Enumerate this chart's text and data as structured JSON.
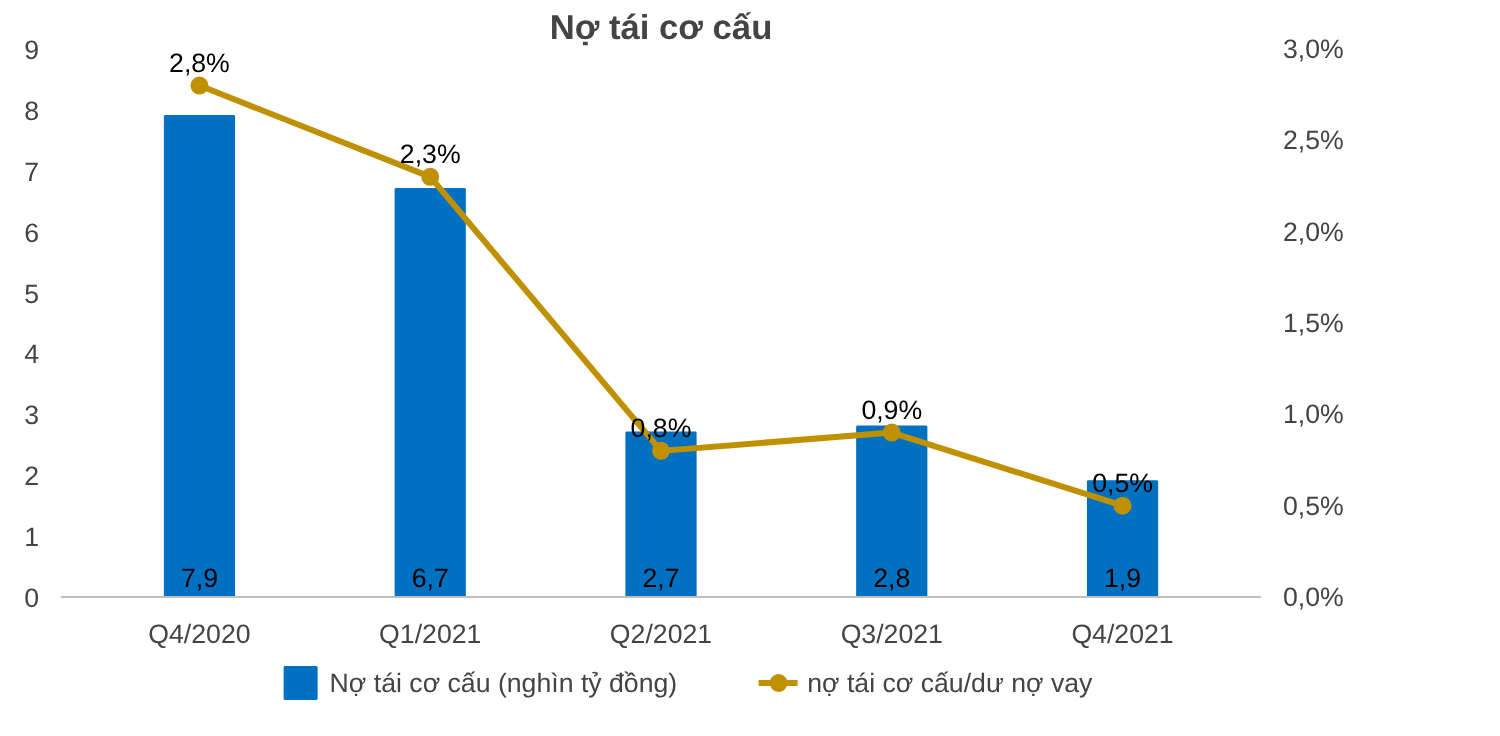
{
  "chart_data": {
    "type": "bar",
    "title": "Nợ tái cơ cấu",
    "categories": [
      "Q4/2020",
      "Q1/2021",
      "Q2/2021",
      "Q3/2021",
      "Q4/2021"
    ],
    "series": [
      {
        "name": "Nợ tái cơ cấu (nghìn tỷ đồng)",
        "color": "#0070c0",
        "values": [
          7.9,
          6.7,
          2.7,
          2.8,
          1.9
        ],
        "value_labels": [
          "7,9",
          "6,7",
          "2,7",
          "2,8",
          "1,9"
        ]
      },
      {
        "name": "nợ tái cơ cấu/dư nợ vay",
        "type": "line",
        "axis": "y2",
        "color": "#bf9000",
        "values": [
          2.8,
          2.3,
          0.8,
          0.9,
          0.5
        ],
        "value_labels": [
          "2,8%",
          "2,3%",
          "0,8%",
          "0,9%",
          "0,5%"
        ]
      }
    ],
    "ylim": [
      0,
      9
    ],
    "yticks": [
      0,
      1,
      2,
      3,
      4,
      5,
      6,
      7,
      8,
      9
    ],
    "y2lim": [
      0,
      3
    ],
    "y2ticks": [
      {
        "value": 0,
        "label": "0,0%"
      },
      {
        "value": 0.5,
        "label": "0,5%"
      },
      {
        "value": 1,
        "label": "1,0%"
      },
      {
        "value": 1.5,
        "label": "1,5%"
      },
      {
        "value": 2,
        "label": "2,0%"
      },
      {
        "value": 2.5,
        "label": "2,5%"
      },
      {
        "value": 3,
        "label": "3,0%"
      }
    ],
    "marker": "circle",
    "line_style": "solid",
    "grid": false,
    "legend": "bottom"
  }
}
